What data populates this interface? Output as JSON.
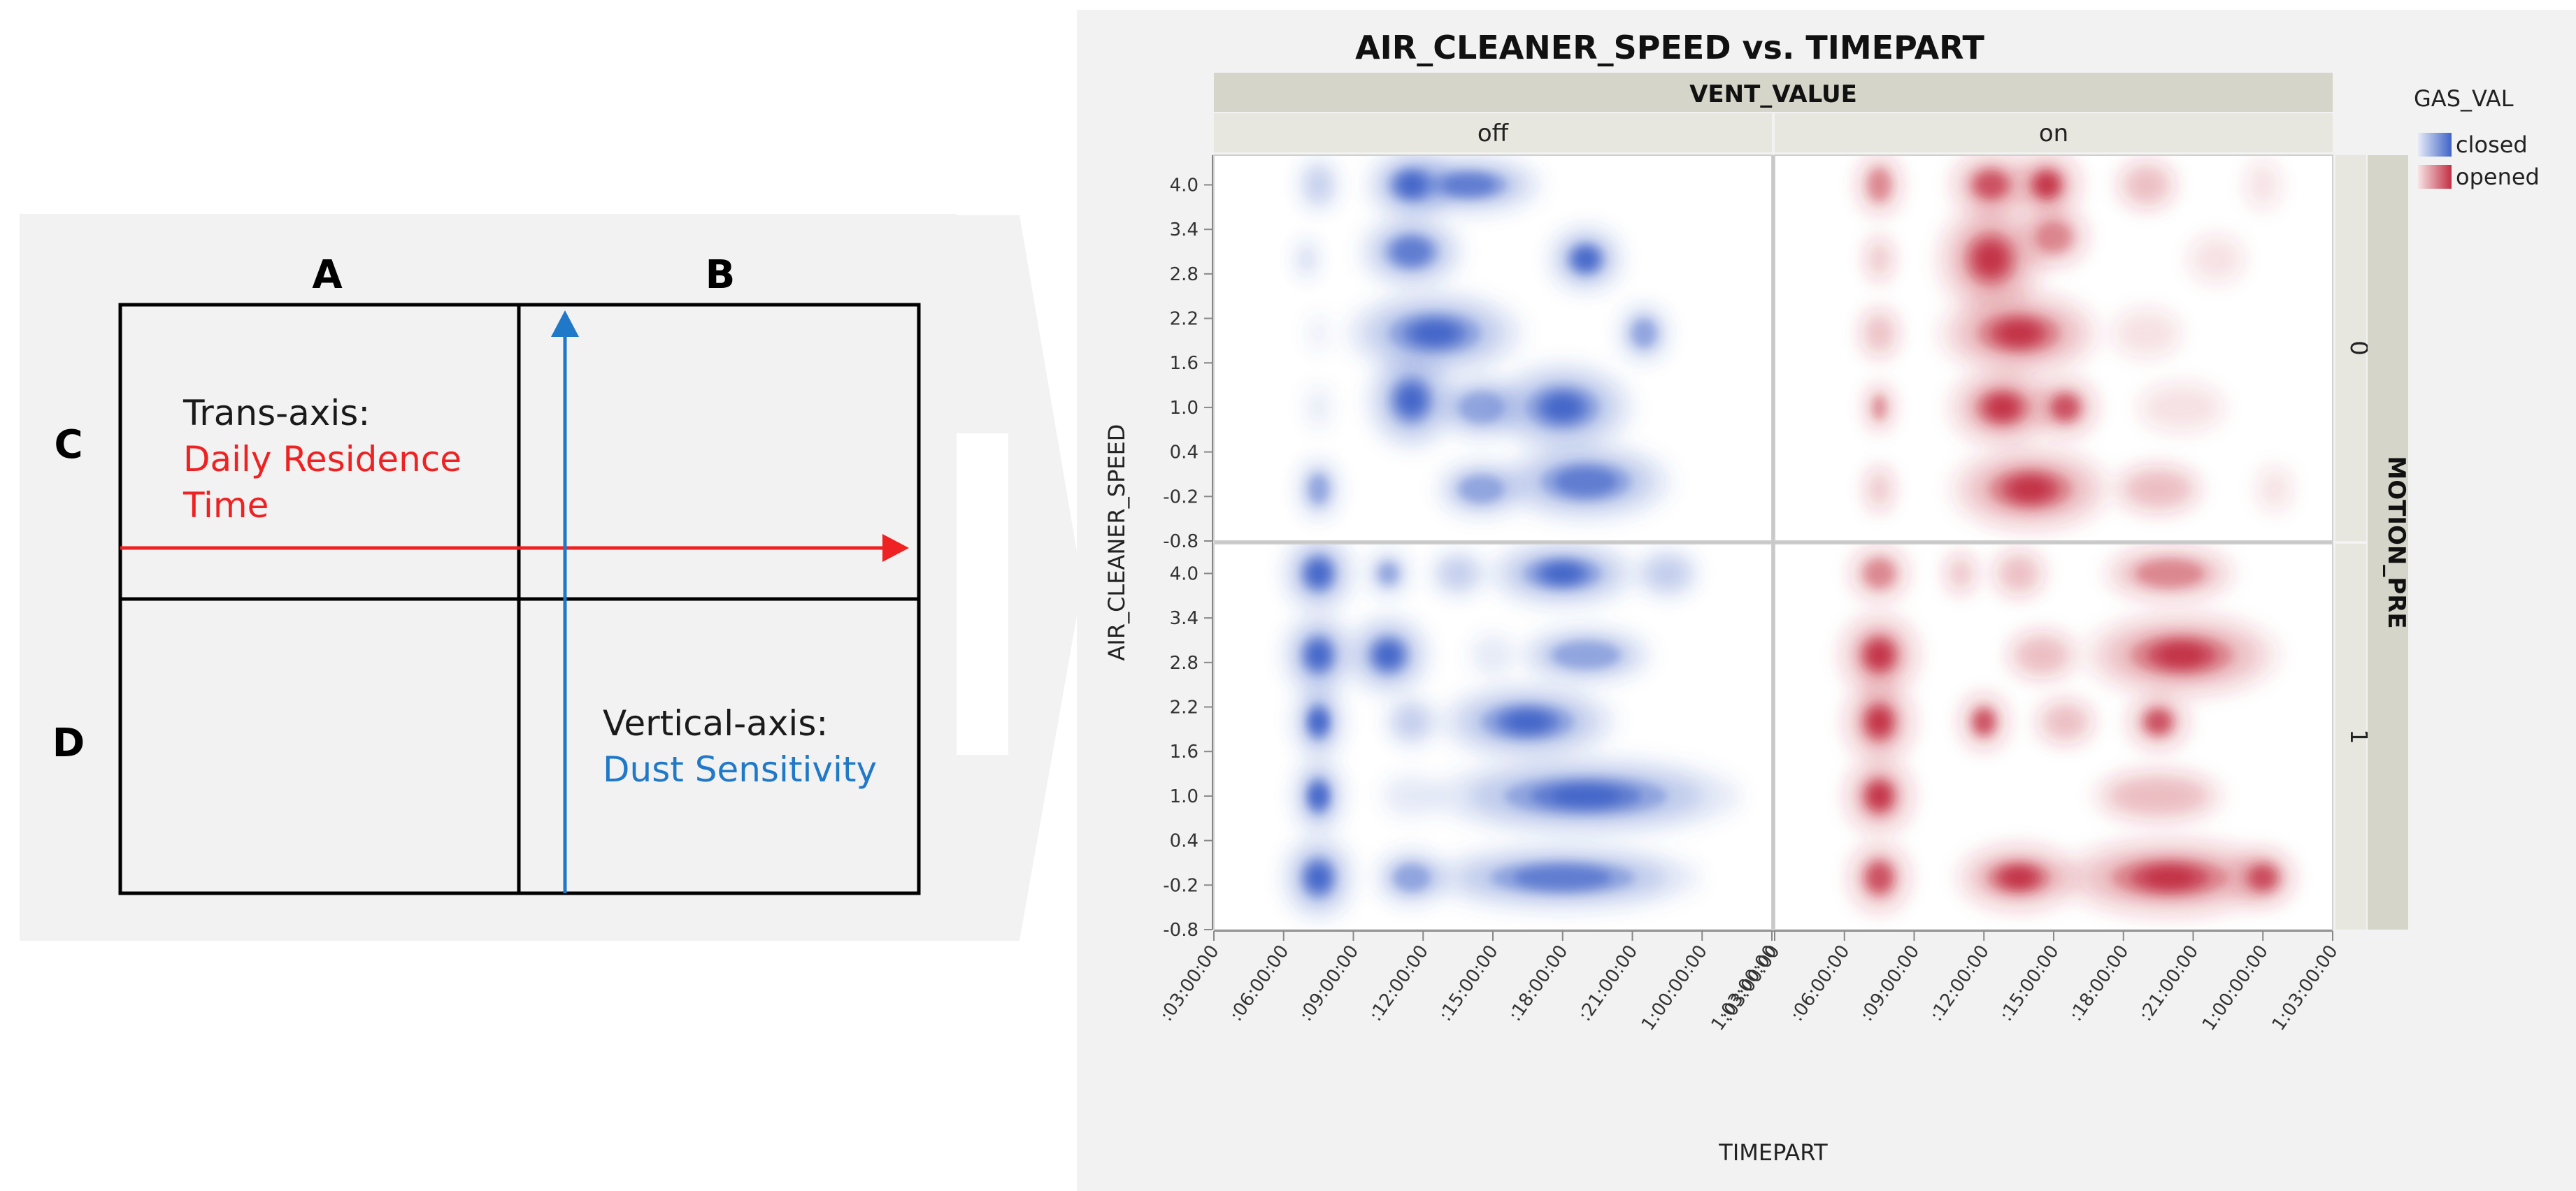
{
  "quadrant_diagram": {
    "col_labels": [
      "A",
      "B"
    ],
    "row_labels": [
      "C",
      "D"
    ],
    "trans_axis_label": "Trans-axis:",
    "trans_axis_name_line1": "Daily Residence",
    "trans_axis_name_line2": "Time",
    "vertical_axis_label": "Vertical-axis:",
    "vertical_axis_name": "Dust Sensitivity",
    "colors": {
      "panel_bg": "#f2f2f2",
      "trans_axis": "#ee2222",
      "vertical_axis": "#1f78c8",
      "lines": "#000000"
    }
  },
  "chart_data": {
    "type": "heatmap",
    "subtype": "contour-density",
    "title": "AIR_CLEANER_SPEED vs. TIMEPART",
    "xlabel": "TIMEPART",
    "ylabel": "AIR_CLEANER_SPEED",
    "column_facet_label": "VENT_VALUE",
    "column_facets": [
      "off",
      "on"
    ],
    "row_facet_label": "MOTION_PRE",
    "row_facets": [
      "0",
      "1"
    ],
    "x_ticks": [
      ":03:00:00",
      ":06:00:00",
      ":09:00:00",
      ":12:00:00",
      ":15:00:00",
      ":18:00:00",
      ":21:00:00",
      "1:00:00:00",
      "1:03:00:00"
    ],
    "y_ticks": [
      "4.0",
      "3.4",
      "2.8",
      "2.2",
      "1.6",
      "1.0",
      "0.4",
      "-0.2",
      "-0.8"
    ],
    "x_range_hours": [
      3,
      27
    ],
    "y_range": [
      -0.8,
      4.4
    ],
    "legend_title": "GAS_VAL",
    "legend_position": "right",
    "series": [
      {
        "name": "closed",
        "color": "#3f63c8",
        "shown_when": "off"
      },
      {
        "name": "opened",
        "color": "#c22f43",
        "shown_when": "on"
      }
    ],
    "panels": [
      {
        "vent": "off",
        "motion": "0",
        "blobs": [
          [
            11.5,
            4.0,
            1.0,
            0.15,
            1.0
          ],
          [
            14.0,
            4.0,
            1.8,
            0.12,
            0.8
          ],
          [
            7.5,
            4.0,
            0.6,
            0.12,
            0.3
          ],
          [
            11.5,
            3.1,
            1.3,
            0.18,
            0.75
          ],
          [
            19.0,
            3.0,
            0.9,
            0.15,
            0.85
          ],
          [
            7.0,
            3.0,
            0.25,
            0.06,
            0.35
          ],
          [
            12.5,
            2.0,
            2.0,
            0.2,
            1.0
          ],
          [
            21.5,
            2.0,
            0.7,
            0.13,
            0.55
          ],
          [
            7.5,
            2.0,
            0.3,
            0.05,
            0.15
          ],
          [
            11.5,
            1.1,
            1.0,
            0.25,
            1.0
          ],
          [
            18.0,
            1.0,
            1.6,
            0.22,
            1.0
          ],
          [
            14.5,
            1.0,
            1.2,
            0.15,
            0.6
          ],
          [
            7.5,
            1.0,
            0.4,
            0.08,
            0.2
          ],
          [
            19.0,
            0.0,
            2.2,
            0.2,
            0.75
          ],
          [
            14.5,
            -0.1,
            1.2,
            0.12,
            0.6
          ],
          [
            7.5,
            -0.1,
            0.6,
            0.15,
            0.45
          ]
        ]
      },
      {
        "vent": "on",
        "motion": "0",
        "blobs": [
          [
            7.5,
            4.0,
            0.6,
            0.15,
            0.6
          ],
          [
            12.3,
            4.0,
            1.0,
            0.15,
            0.8
          ],
          [
            14.7,
            4.0,
            0.8,
            0.15,
            0.95
          ],
          [
            19.0,
            4.0,
            1.0,
            0.12,
            0.25
          ],
          [
            24.0,
            4.0,
            0.6,
            0.12,
            0.2
          ],
          [
            12.3,
            3.0,
            1.2,
            0.3,
            1.0
          ],
          [
            15.0,
            3.3,
            1.0,
            0.15,
            0.5
          ],
          [
            7.5,
            3.0,
            0.4,
            0.1,
            0.35
          ],
          [
            22.0,
            3.0,
            1.0,
            0.12,
            0.15
          ],
          [
            13.5,
            2.0,
            1.8,
            0.2,
            1.0
          ],
          [
            7.5,
            2.0,
            0.6,
            0.12,
            0.35
          ],
          [
            19.0,
            2.0,
            1.2,
            0.12,
            0.2
          ],
          [
            12.8,
            1.0,
            1.2,
            0.18,
            1.0
          ],
          [
            15.5,
            1.0,
            0.8,
            0.13,
            0.8
          ],
          [
            7.5,
            1.0,
            0.4,
            0.1,
            0.45
          ],
          [
            20.5,
            1.0,
            1.5,
            0.12,
            0.2
          ],
          [
            14.0,
            -0.1,
            1.8,
            0.2,
            1.0
          ],
          [
            7.5,
            -0.1,
            0.4,
            0.1,
            0.4
          ],
          [
            19.5,
            -0.1,
            1.5,
            0.12,
            0.25
          ],
          [
            24.5,
            -0.1,
            0.6,
            0.1,
            0.2
          ]
        ]
      },
      {
        "vent": "off",
        "motion": "1",
        "blobs": [
          [
            7.5,
            4.0,
            0.8,
            0.18,
            1.0
          ],
          [
            10.5,
            4.0,
            0.6,
            0.08,
            0.45
          ],
          [
            13.5,
            4.0,
            0.8,
            0.08,
            0.4
          ],
          [
            18.0,
            4.0,
            1.8,
            0.15,
            0.85
          ],
          [
            22.5,
            4.0,
            1.0,
            0.1,
            0.3
          ],
          [
            7.5,
            2.9,
            0.8,
            0.2,
            1.0
          ],
          [
            10.5,
            2.9,
            1.0,
            0.2,
            0.85
          ],
          [
            19.0,
            2.9,
            1.8,
            0.12,
            0.6
          ],
          [
            15.0,
            2.9,
            0.8,
            0.08,
            0.15
          ],
          [
            7.5,
            2.0,
            0.6,
            0.18,
            0.9
          ],
          [
            16.5,
            2.0,
            2.0,
            0.17,
            1.0
          ],
          [
            11.5,
            2.0,
            0.8,
            0.1,
            0.3
          ],
          [
            7.5,
            1.0,
            0.6,
            0.18,
            0.9
          ],
          [
            19.0,
            1.0,
            3.5,
            0.18,
            1.0
          ],
          [
            11.5,
            1.0,
            1.0,
            0.08,
            0.2
          ],
          [
            7.5,
            -0.1,
            0.8,
            0.2,
            1.0
          ],
          [
            11.5,
            -0.1,
            1.0,
            0.12,
            0.55
          ],
          [
            18.0,
            -0.1,
            3.5,
            0.15,
            0.75
          ]
        ]
      },
      {
        "vent": "on",
        "motion": "1",
        "blobs": [
          [
            7.5,
            4.0,
            0.8,
            0.12,
            0.6
          ],
          [
            11.0,
            4.0,
            0.5,
            0.08,
            0.25
          ],
          [
            13.5,
            4.0,
            0.8,
            0.1,
            0.4
          ],
          [
            20.0,
            4.0,
            1.8,
            0.12,
            0.6
          ],
          [
            7.5,
            2.9,
            0.9,
            0.2,
            1.0
          ],
          [
            20.5,
            2.9,
            2.2,
            0.2,
            1.0
          ],
          [
            14.5,
            2.9,
            1.2,
            0.12,
            0.25
          ],
          [
            7.5,
            2.0,
            0.8,
            0.2,
            1.0
          ],
          [
            12.0,
            2.0,
            0.6,
            0.12,
            0.8
          ],
          [
            19.5,
            2.0,
            0.8,
            0.12,
            0.7
          ],
          [
            15.5,
            2.0,
            1.0,
            0.1,
            0.25
          ],
          [
            7.5,
            1.0,
            0.8,
            0.18,
            0.95
          ],
          [
            19.5,
            1.0,
            2.0,
            0.12,
            0.4
          ],
          [
            7.5,
            -0.1,
            0.8,
            0.18,
            0.7
          ],
          [
            13.5,
            -0.1,
            1.5,
            0.15,
            0.85
          ],
          [
            20.0,
            -0.1,
            2.5,
            0.18,
            1.0
          ],
          [
            24.0,
            -0.1,
            0.8,
            0.12,
            0.8
          ]
        ]
      }
    ]
  }
}
